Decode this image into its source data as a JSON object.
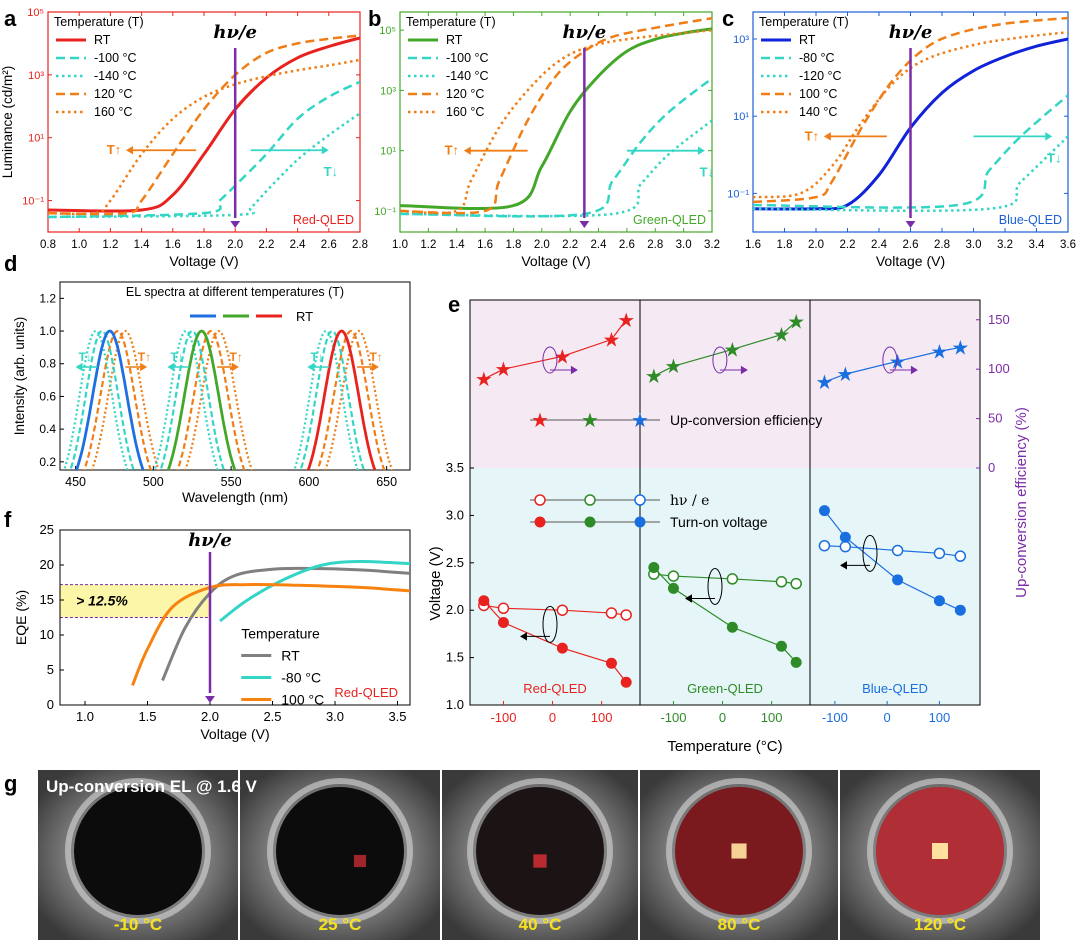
{
  "panel_letters": [
    "a",
    "b",
    "c",
    "d",
    "e",
    "f",
    "g"
  ],
  "hv_label": "hν/e",
  "t_up": "T↑",
  "t_down": "T↓",
  "chart_data": [
    {
      "id": "a",
      "type": "line",
      "color": "#e8231f",
      "xlabel": "Voltage (V)",
      "ylabel": "Luminance (cd/m²)",
      "log_y": true,
      "xlim": [
        0.8,
        2.8
      ],
      "ylim": [
        0.01,
        100000
      ],
      "xticks": [
        "0.8",
        "1.0",
        "1.2",
        "1.4",
        "1.6",
        "1.8",
        "2.0",
        "2.2",
        "2.4",
        "2.6",
        "2.8"
      ],
      "yticks": [
        {
          "v": 0.1,
          "t": "10⁻¹"
        },
        {
          "v": 10,
          "t": "10¹"
        },
        {
          "v": 1000,
          "t": "10³"
        },
        {
          "v": 100000,
          "t": "10⁵"
        }
      ],
      "legend_title": "Temperature (T)",
      "tag": "Red-QLED",
      "hv_x": 2.0,
      "series": [
        {
          "name": "RT",
          "style": "solid",
          "color": "#e8231f",
          "x": [
            0.8,
            1.4,
            1.6,
            1.8,
            2.0,
            2.2,
            2.4,
            2.6,
            2.8
          ],
          "y": [
            0.05,
            0.05,
            0.15,
            3,
            80,
            800,
            3500,
            8000,
            15000
          ]
        },
        {
          "name": "-100 °C",
          "style": "dash",
          "color": "#33d6c4",
          "x": [
            0.8,
            1.8,
            1.9,
            2.0,
            2.2,
            2.4,
            2.6,
            2.8
          ],
          "y": [
            0.03,
            0.04,
            0.1,
            0.3,
            3,
            40,
            200,
            600
          ]
        },
        {
          "name": "-140 °C",
          "style": "dot",
          "color": "#33d6c4",
          "x": [
            0.8,
            2.0,
            2.1,
            2.2,
            2.4,
            2.6,
            2.8
          ],
          "y": [
            0.03,
            0.035,
            0.06,
            0.2,
            2,
            12,
            60
          ]
        },
        {
          "name": "120 °C",
          "style": "dash",
          "color": "#f07d16",
          "x": [
            0.8,
            1.3,
            1.4,
            1.6,
            1.8,
            2.0,
            2.2,
            2.4,
            2.6,
            2.8
          ],
          "y": [
            0.04,
            0.04,
            0.1,
            3,
            80,
            1000,
            5000,
            10000,
            14000,
            18000
          ]
        },
        {
          "name": "160 °C",
          "style": "dot",
          "color": "#f07d16",
          "x": [
            0.8,
            1.1,
            1.2,
            1.4,
            1.6,
            1.8,
            2.0,
            2.2,
            2.4,
            2.6,
            2.8
          ],
          "y": [
            0.04,
            0.04,
            0.1,
            3,
            40,
            200,
            500,
            900,
            1400,
            2000,
            3000
          ]
        }
      ],
      "arrows": [
        {
          "dir": "left",
          "y": 4,
          "x1": 1.75,
          "x2": 1.3,
          "label": "T↑",
          "color": "#f07d16"
        },
        {
          "dir": "right",
          "y": 4,
          "x1": 2.1,
          "x2": 2.6,
          "label": "T↓",
          "color": "#33d6c4"
        }
      ]
    },
    {
      "id": "b",
      "type": "line",
      "color": "#43a82a",
      "xlabel": "Voltage (V)",
      "ylabel": "",
      "log_y": true,
      "xlim": [
        1.0,
        3.2
      ],
      "ylim": [
        0.02,
        400000
      ],
      "xticks": [
        "1.0",
        "1.2",
        "1.4",
        "1.6",
        "1.8",
        "2.0",
        "2.2",
        "2.4",
        "2.6",
        "2.8",
        "3.0",
        "3.2"
      ],
      "yticks": [
        {
          "v": 0.1,
          "t": "10⁻¹"
        },
        {
          "v": 10,
          "t": "10¹"
        },
        {
          "v": 1000,
          "t": "10³"
        },
        {
          "v": 100000,
          "t": "10⁵"
        }
      ],
      "legend_title": "Temperature (T)",
      "tag": "Green-QLED",
      "hv_x": 2.3,
      "series": [
        {
          "name": "RT",
          "style": "solid",
          "color": "#43a82a",
          "x": [
            1.0,
            1.8,
            2.0,
            2.2,
            2.4,
            2.6,
            2.8,
            3.0,
            3.2
          ],
          "y": [
            0.15,
            0.15,
            3,
            200,
            3000,
            20000,
            50000,
            80000,
            110000
          ]
        },
        {
          "name": "-100 °C",
          "style": "dash",
          "color": "#33d6c4",
          "x": [
            1.0,
            2.3,
            2.5,
            2.7,
            2.9,
            3.2
          ],
          "y": [
            0.08,
            0.08,
            1,
            20,
            200,
            2500
          ]
        },
        {
          "name": "-140 °C",
          "style": "dot",
          "color": "#33d6c4",
          "x": [
            1.0,
            2.5,
            2.7,
            2.9,
            3.2
          ],
          "y": [
            0.08,
            0.08,
            0.8,
            8,
            100
          ]
        },
        {
          "name": "120 °C",
          "style": "dash",
          "color": "#f07d16",
          "x": [
            1.0,
            1.6,
            1.7,
            1.9,
            2.1,
            2.3,
            2.5,
            2.8,
            3.2
          ],
          "y": [
            0.1,
            0.1,
            1,
            100,
            3000,
            20000,
            60000,
            120000,
            250000
          ]
        },
        {
          "name": "160 °C",
          "style": "dot",
          "color": "#f07d16",
          "x": [
            1.0,
            1.4,
            1.5,
            1.7,
            1.9,
            2.1,
            2.3,
            2.6,
            3.2
          ],
          "y": [
            0.1,
            0.1,
            1,
            60,
            1000,
            8000,
            25000,
            50000,
            100000
          ]
        }
      ],
      "arrows": [
        {
          "dir": "left",
          "y": 10,
          "x1": 1.9,
          "x2": 1.45,
          "label": "T↑",
          "color": "#f07d16"
        },
        {
          "dir": "right",
          "y": 10,
          "x1": 2.6,
          "x2": 3.15,
          "label": "T↓",
          "color": "#33d6c4"
        }
      ]
    },
    {
      "id": "c",
      "type": "line",
      "color": "#1a5fd6",
      "xlabel": "Voltage (V)",
      "ylabel": "",
      "log_y": true,
      "xlim": [
        1.6,
        3.6
      ],
      "ylim": [
        0.01,
        5000
      ],
      "xticks": [
        "1.6",
        "1.8",
        "2.0",
        "2.2",
        "2.4",
        "2.6",
        "2.8",
        "3.0",
        "3.2",
        "3.4",
        "3.6"
      ],
      "yticks": [
        {
          "v": 0.1,
          "t": "10⁻¹"
        },
        {
          "v": 10,
          "t": "10¹"
        },
        {
          "v": 1000,
          "t": "10³"
        }
      ],
      "legend_title": "Temperature (T)",
      "tag": "Blue-QLED",
      "hv_x": 2.6,
      "series": [
        {
          "name": "RT",
          "style": "solid",
          "color": "#1123d8",
          "x": [
            1.6,
            2.0,
            2.2,
            2.4,
            2.6,
            2.8,
            3.0,
            3.2,
            3.4,
            3.6
          ],
          "y": [
            0.04,
            0.04,
            0.05,
            0.3,
            5,
            40,
            150,
            350,
            650,
            1000
          ]
        },
        {
          "name": "-80 °C",
          "style": "dash",
          "color": "#33d6c4",
          "x": [
            1.6,
            2.9,
            3.1,
            3.3,
            3.6
          ],
          "y": [
            0.05,
            0.05,
            0.4,
            3,
            35
          ]
        },
        {
          "name": "-120 °C",
          "style": "dot",
          "color": "#33d6c4",
          "x": [
            1.6,
            3.1,
            3.3,
            3.6
          ],
          "y": [
            0.04,
            0.04,
            0.2,
            3
          ]
        },
        {
          "name": "100 °C",
          "style": "dash",
          "color": "#f07d16",
          "x": [
            1.6,
            2.0,
            2.1,
            2.3,
            2.5,
            2.7,
            2.9,
            3.2,
            3.6
          ],
          "y": [
            0.06,
            0.08,
            0.2,
            6,
            100,
            600,
            1400,
            2500,
            3500
          ]
        },
        {
          "name": "140 °C",
          "style": "dot",
          "color": "#f07d16",
          "x": [
            1.6,
            1.9,
            2.1,
            2.3,
            2.5,
            2.7,
            3.0,
            3.3,
            3.6
          ],
          "y": [
            0.08,
            0.1,
            0.5,
            8,
            80,
            300,
            700,
            1100,
            1500
          ]
        }
      ],
      "arrows": [
        {
          "dir": "left",
          "y": 3,
          "x1": 2.45,
          "x2": 2.05,
          "label": "T↑",
          "color": "#f07d16"
        },
        {
          "dir": "right",
          "y": 3,
          "x1": 3.0,
          "x2": 3.5,
          "label": "T↓",
          "color": "#33d6c4"
        }
      ]
    },
    {
      "id": "d",
      "type": "line",
      "title": "EL spectra at different temperatures (T)",
      "xlabel": "Wavelength (nm)",
      "ylabel": "Intensity (arb. units)",
      "xlim": [
        440,
        665
      ],
      "ylim": [
        0.15,
        1.3
      ],
      "xticks": [
        "450",
        "500",
        "550",
        "600",
        "650"
      ],
      "yticks": [
        "0.2",
        "0.4",
        "0.6",
        "0.8",
        "1.0",
        "1.2"
      ],
      "legend_label": "RT",
      "peaks": [
        {
          "color": "#1e6fe0",
          "rt": 472,
          "hot": [
            477,
            482
          ],
          "cold": [
            467,
            463
          ],
          "w": 11
        },
        {
          "color": "#43a82a",
          "rt": 531,
          "hot": [
            537,
            542
          ],
          "cold": [
            525,
            521
          ],
          "w": 11
        },
        {
          "color": "#e8231f",
          "rt": 621,
          "hot": [
            627,
            632
          ],
          "cold": [
            615,
            611
          ],
          "w": 11
        }
      ]
    },
    {
      "id": "e",
      "type": "scatter",
      "xlabel": "Temperature (°C)",
      "ylabel": "Voltage (V)",
      "ylabel_right": "Up-conversion efficiency (%)",
      "y_lim": [
        1.0,
        3.5
      ],
      "eff_lim": [
        0,
        170
      ],
      "yticks": [
        "1.0",
        "1.5",
        "2.0",
        "2.5",
        "3.0",
        "3.5"
      ],
      "eff_ticks": [
        "0",
        "50",
        "100",
        "150"
      ],
      "legend": {
        "star": "Up-conversion efficiency",
        "open": "hν / e",
        "filled": "Turn-on voltage"
      },
      "devices": [
        {
          "name": "Red-QLED",
          "color": "#e8231f",
          "xticks": [
            "-100",
            "0",
            "100"
          ],
          "xtick_vals": [
            -100,
            0,
            100
          ],
          "xlim": [
            -160,
            170
          ],
          "temps": [
            -140,
            -100,
            20,
            120,
            150
          ],
          "hv": [
            2.05,
            2.02,
            2.0,
            1.97,
            1.95
          ],
          "turnon": [
            2.1,
            1.87,
            1.6,
            1.44,
            1.24
          ],
          "eff_temps": [
            -140,
            -100,
            20,
            120,
            150
          ],
          "eff": [
            90,
            100,
            113,
            130,
            150
          ]
        },
        {
          "name": "Green-QLED",
          "color": "#2e8b27",
          "xticks": [
            "-100",
            "0",
            "100"
          ],
          "xtick_vals": [
            -100,
            0,
            100
          ],
          "xlim": [
            -160,
            170
          ],
          "temps": [
            -140,
            -100,
            20,
            120,
            150
          ],
          "hv": [
            2.38,
            2.36,
            2.33,
            2.3,
            2.28
          ],
          "turnon": [
            2.45,
            2.23,
            1.82,
            1.62,
            1.45
          ],
          "eff_temps": [
            -140,
            -100,
            20,
            120,
            150
          ],
          "eff": [
            93,
            103,
            120,
            135,
            148
          ]
        },
        {
          "name": "Blue-QLED",
          "color": "#1a6fe0",
          "xticks": [
            "-100",
            "0",
            "100"
          ],
          "xtick_vals": [
            -100,
            0,
            100
          ],
          "xlim": [
            -140,
            170
          ],
          "temps": [
            -120,
            -80,
            20,
            100,
            140
          ],
          "hv": [
            2.68,
            2.67,
            2.63,
            2.6,
            2.57
          ],
          "turnon": [
            3.05,
            2.77,
            2.32,
            2.1,
            2.0
          ],
          "eff_temps": [
            -120,
            -80,
            20,
            100,
            140
          ],
          "eff": [
            87,
            95,
            108,
            118,
            122
          ]
        }
      ]
    },
    {
      "id": "f",
      "type": "line",
      "xlabel": "Voltage (V)",
      "ylabel": "EQE (%)",
      "xlim": [
        0.8,
        3.6
      ],
      "ylim": [
        0,
        25
      ],
      "xticks": [
        "1.0",
        "1.5",
        "2.0",
        "2.5",
        "3.0",
        "3.5"
      ],
      "yticks": [
        "0",
        "5",
        "10",
        "15",
        "20",
        "25"
      ],
      "legend_title": "Temperature",
      "tag": "Red-QLED",
      "hv_x": 2.0,
      "box_label": "> 12.5%",
      "series": [
        {
          "name": "RT",
          "color": "#808080",
          "x": [
            1.62,
            1.8,
            2.0,
            2.2,
            2.5,
            2.8,
            3.2,
            3.6
          ],
          "y": [
            3.5,
            11,
            16,
            18.5,
            19.4,
            19.5,
            19.3,
            18.8
          ]
        },
        {
          "name": "-80 °C",
          "color": "#33d6c4",
          "x": [
            2.08,
            2.3,
            2.6,
            2.9,
            3.2,
            3.6
          ],
          "y": [
            12,
            15,
            18,
            20,
            20.5,
            20.2
          ]
        },
        {
          "name": "100 °C",
          "color": "#f7820f",
          "x": [
            1.38,
            1.5,
            1.7,
            2.0,
            2.3,
            2.7,
            3.2,
            3.6
          ],
          "y": [
            2.8,
            8,
            14,
            16.8,
            17.2,
            17.1,
            16.8,
            16.3
          ]
        }
      ]
    }
  ],
  "photos": {
    "caption": "Up-conversion EL @ 1.6 V",
    "temps": [
      "-10 °C",
      "25 °C",
      "40 °C",
      "80 °C",
      "120 °C"
    ],
    "glow": [
      0,
      0.35,
      0.55,
      0.85,
      1.0
    ]
  }
}
